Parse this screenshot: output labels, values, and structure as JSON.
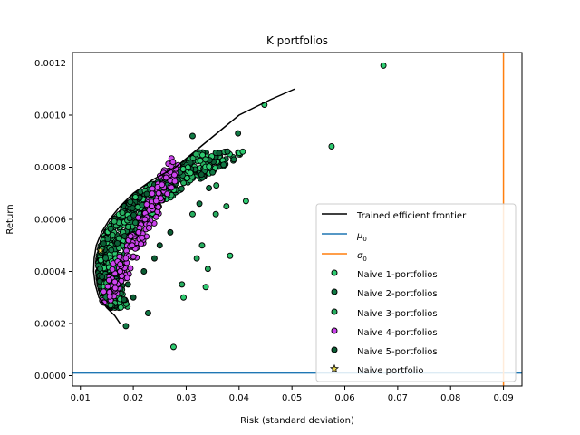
{
  "chart_data": {
    "type": "scatter",
    "title": "K portfolios",
    "xlabel": "Risk (standard deviation)",
    "ylabel": "Return",
    "xlim": [
      0.0085,
      0.0935
    ],
    "ylim": [
      -4e-05,
      0.00124
    ],
    "xticks": [
      0.01,
      0.02,
      0.03,
      0.04,
      0.05,
      0.06,
      0.07,
      0.08,
      0.09
    ],
    "xtick_labels": [
      "0.01",
      "0.02",
      "0.03",
      "0.04",
      "0.05",
      "0.06",
      "0.07",
      "0.08",
      "0.09"
    ],
    "yticks": [
      0.0,
      0.0002,
      0.0004,
      0.0006,
      0.0008,
      0.001,
      0.0012
    ],
    "ytick_labels": [
      "0.0000",
      "0.0002",
      "0.0004",
      "0.0006",
      "0.0008",
      "0.0010",
      "0.0012"
    ],
    "grid": false,
    "legend_position": "lower-right",
    "frontier": {
      "name": "Trained efficient frontier",
      "color": "#000000",
      "x": [
        0.0175,
        0.0165,
        0.015,
        0.0135,
        0.0128,
        0.0125,
        0.0126,
        0.013,
        0.014,
        0.0155,
        0.0175,
        0.02,
        0.0235,
        0.028,
        0.034,
        0.04,
        0.046,
        0.0505
      ],
      "y": [
        0.0002,
        0.00023,
        0.00026,
        0.0003,
        0.00035,
        0.0004,
        0.00045,
        0.0005,
        0.00055,
        0.0006,
        0.00065,
        0.0007,
        0.00075,
        0.0008,
        0.0009,
        0.001,
        0.00106,
        0.0011
      ]
    },
    "mu0": {
      "name": "μ0",
      "label_base": "μ",
      "label_sub": "0",
      "color": "#1f77b4",
      "value": 1e-05
    },
    "sigma0": {
      "name": "σ0",
      "label_base": "σ",
      "label_sub": "0",
      "color": "#ff7f0e",
      "value": 0.09
    },
    "naive_series": [
      {
        "name": "Naive 1-portfolios",
        "color": "#2ecc71",
        "x": [
          0.0673,
          0.0575,
          0.0448,
          0.0276,
          0.0337,
          0.0295,
          0.0383,
          0.0413
        ],
        "y": [
          0.00119,
          0.00088,
          0.00104,
          0.00011,
          0.00034,
          0.0003,
          0.00046,
          0.00067
        ]
      },
      {
        "name": "Naive 2-portfolios",
        "color": "#117a45",
        "x": [
          0.0186,
          0.0228,
          0.0325,
          0.0378,
          0.0398,
          0.035,
          0.039,
          0.0312,
          0.0343
        ],
        "y": [
          0.00019,
          0.00024,
          0.00066,
          0.00086,
          0.00093,
          0.00078,
          0.00083,
          0.00092,
          0.00072
        ]
      },
      {
        "name": "Naive 3-portfolios",
        "color": "#27ae60",
        "x": [
          0.0341,
          0.0357,
          0.0376,
          0.0312,
          0.0292,
          0.0356,
          0.033,
          0.032
        ],
        "y": [
          0.00041,
          0.00073,
          0.00065,
          0.00062,
          0.00035,
          0.00062,
          0.0005,
          0.00045
        ]
      },
      {
        "name": "Naive 4-portfolios",
        "color": "#cc44ee",
        "x": [
          0.0275,
          0.0262,
          0.0248,
          0.0235,
          0.0222,
          0.021,
          0.0198,
          0.0186,
          0.0175,
          0.0165,
          0.0155,
          0.0145
        ],
        "y": [
          0.00082,
          0.00076,
          0.0007,
          0.00065,
          0.0006,
          0.00055,
          0.0005,
          0.00045,
          0.0004,
          0.00036,
          0.00032,
          0.00028
        ]
      },
      {
        "name": "Naive 5-portfolios",
        "color": "#0b5e34",
        "x": [
          0.02,
          0.022,
          0.025,
          0.027,
          0.024,
          0.019
        ],
        "y": [
          0.0003,
          0.0004,
          0.0005,
          0.00055,
          0.00045,
          0.00035
        ]
      }
    ],
    "naive_portfolio": {
      "name": "Naive portfolio",
      "color": "#e8d84a",
      "x": 0.0138,
      "y": 0.00048
    },
    "cloud": {
      "count": 950,
      "seed": 7
    }
  }
}
